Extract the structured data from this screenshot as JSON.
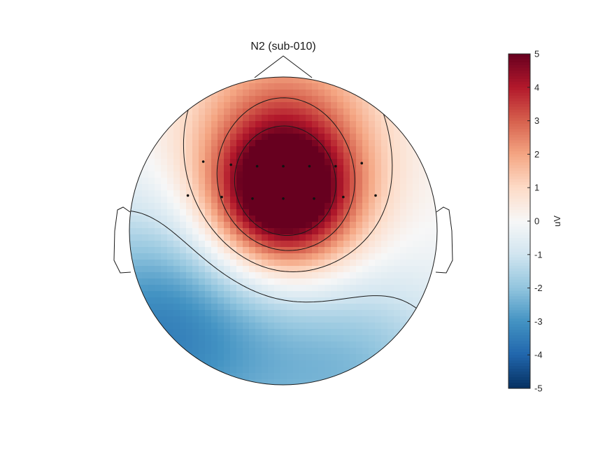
{
  "chart_data": {
    "type": "heatmap",
    "subtype": "eeg-topoplot",
    "title": "N2 (sub-010)",
    "colorbar": {
      "label": "uV",
      "range": [
        -5,
        5
      ],
      "ticks": [
        "5",
        "4",
        "3",
        "2",
        "1",
        "0",
        "-1",
        "-2",
        "-3",
        "-4",
        "-5"
      ],
      "colormap": "RdBu_r",
      "colors": [
        "#053061",
        "#2166ac",
        "#4393c3",
        "#92c5de",
        "#d1e5f0",
        "#f7f7f7",
        "#fddbc7",
        "#f4a582",
        "#d6604d",
        "#b2182b",
        "#67001f"
      ]
    },
    "contour_levels": [
      -1,
      1,
      3,
      4.5
    ],
    "electrodes": [
      {
        "x": -0.52,
        "y": 0.45
      },
      {
        "x": -0.34,
        "y": 0.43
      },
      {
        "x": -0.17,
        "y": 0.42
      },
      {
        "x": 0.0,
        "y": 0.42
      },
      {
        "x": 0.17,
        "y": 0.42
      },
      {
        "x": 0.34,
        "y": 0.42
      },
      {
        "x": 0.51,
        "y": 0.44
      },
      {
        "x": -0.62,
        "y": 0.23
      },
      {
        "x": -0.4,
        "y": 0.22
      },
      {
        "x": -0.2,
        "y": 0.21
      },
      {
        "x": 0.0,
        "y": 0.21
      },
      {
        "x": 0.2,
        "y": 0.21
      },
      {
        "x": 0.39,
        "y": 0.22
      },
      {
        "x": 0.6,
        "y": 0.23
      }
    ],
    "field_sources": [
      {
        "x": 0.0,
        "y": 0.22,
        "amp": 6.3,
        "sigma": 0.33
      },
      {
        "x": 0.0,
        "y": 0.72,
        "amp": 2.2,
        "sigma": 0.45
      },
      {
        "x": -0.85,
        "y": -0.65,
        "amp": -3.2,
        "sigma": 0.55
      },
      {
        "x": 0.6,
        "y": -0.9,
        "amp": -1.5,
        "sigma": 0.45
      },
      {
        "x": 0.0,
        "y": -0.95,
        "amp": -1.0,
        "sigma": 0.5
      }
    ]
  }
}
